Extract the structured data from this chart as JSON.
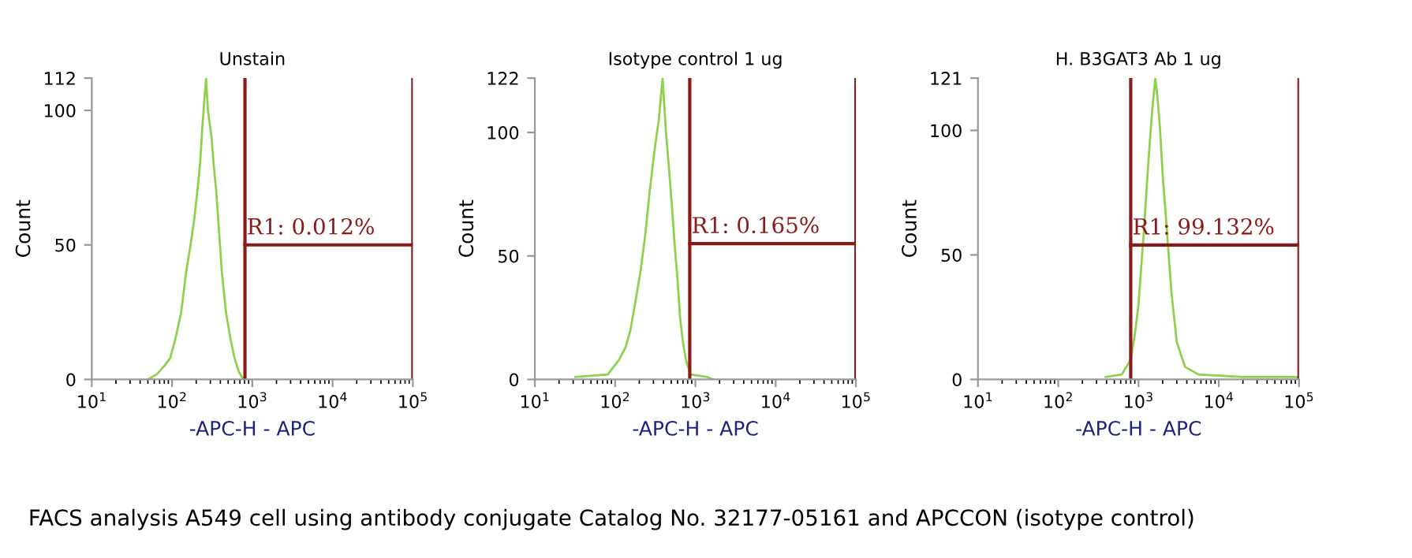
{
  "chart_data": [
    {
      "type": "line",
      "title": "Unstain",
      "xlabel": "-APC-H - APC",
      "ylabel": "Count",
      "log": "x",
      "grid": false,
      "xlim": [
        10,
        100000
      ],
      "xticks": [
        {
          "value": 10,
          "label": "10$^{1}$"
        },
        {
          "value": 100,
          "label": "10$^{2}$"
        },
        {
          "value": 1000,
          "label": "10$^{3}$"
        },
        {
          "value": 10000,
          "label": "10$^{4}$"
        },
        {
          "value": 100000,
          "label": "10$^{5}$"
        }
      ],
      "ylim": [
        0,
        112
      ],
      "yticks": [
        0,
        50,
        100,
        112
      ],
      "series": [
        {
          "color": "#8fd14f",
          "x": [
            50,
            65,
            80,
            95,
            110,
            130,
            150,
            170,
            190,
            210,
            223,
            240,
            265,
            280,
            310,
            330,
            355,
            385,
            417,
            470,
            535,
            600,
            676,
            740,
            790
          ],
          "values": [
            0,
            2,
            5,
            8,
            15,
            25,
            40,
            50,
            60,
            72,
            80,
            95,
            112,
            100,
            90,
            80,
            70,
            55,
            40,
            25,
            15,
            8,
            3,
            1,
            0
          ]
        }
      ],
      "ref_lines": [
        {
          "axis": "x",
          "value": 810,
          "color": "#8b1a1a"
        },
        {
          "axis": "x",
          "value": 100000,
          "color": "#8b1a1a"
        },
        {
          "axis": "y",
          "value": 50,
          "color": "#8b1a1a"
        }
      ],
      "annotations": [
        {
          "text": "R1: 0.012%",
          "x": 810,
          "y": 50
        },
        "FACS analysis A549 cell using antibody conjugate Catalog No. 32177-05161 and APCCON (isotype control)"
      ]
    },
    {
      "type": "line",
      "title": "Isotype control 1 ug",
      "xlabel": "-APC-H - APC",
      "ylabel": "Count",
      "log": "x",
      "grid": false,
      "xlim": [
        10,
        100000
      ],
      "xticks": [
        {
          "value": 10,
          "label": "10$^{1}$"
        },
        {
          "value": 100,
          "label": "10$^{2}$"
        },
        {
          "value": 1000,
          "label": "10$^{3}$"
        },
        {
          "value": 10000,
          "label": "10$^{4}$"
        },
        {
          "value": 100000,
          "label": "10$^{5}$"
        }
      ],
      "ylim": [
        0,
        122
      ],
      "yticks": [
        0,
        50,
        100,
        122
      ],
      "series": [
        {
          "color": "#8fd14f",
          "x": [
            32,
            81,
            112,
            135,
            155,
            180,
            210,
            240,
            267,
            290,
            316,
            350,
            390,
            430,
            470,
            510,
            550,
            600,
            645,
            700,
            760,
            870,
            1400,
            1660
          ],
          "values": [
            1,
            2,
            8,
            13,
            20,
            32,
            45,
            60,
            75,
            85,
            95,
            105,
            122,
            100,
            85,
            70,
            55,
            40,
            25,
            15,
            8,
            2,
            1,
            0
          ]
        }
      ],
      "ref_lines": [
        {
          "axis": "x",
          "value": 850,
          "color": "#8b1a1a"
        },
        {
          "axis": "x",
          "value": 100000,
          "color": "#8b1a1a"
        },
        {
          "axis": "y",
          "value": 55,
          "color": "#8b1a1a"
        }
      ],
      "annotations": [
        {
          "text": "R1: 0.165%",
          "x": 850,
          "y": 55
        }
      ]
    },
    {
      "type": "line",
      "title": "H. B3GAT3 Ab 1 ug",
      "xlabel": "-APC-H - APC",
      "ylabel": "Count",
      "log": "x",
      "grid": false,
      "xlim": [
        10,
        100000
      ],
      "xticks": [
        {
          "value": 10,
          "label": "10$^{1}$"
        },
        {
          "value": 100,
          "label": "10$^{2}$"
        },
        {
          "value": 1000,
          "label": "10$^{3}$"
        },
        {
          "value": 10000,
          "label": "10$^{4}$"
        },
        {
          "value": 100000,
          "label": "10$^{5}$"
        }
      ],
      "ylim": [
        0,
        121
      ],
      "yticks": [
        0,
        50,
        100,
        121
      ],
      "series": [
        {
          "color": "#8fd14f",
          "x": [
            390,
            620,
            800,
            900,
            1000,
            1080,
            1170,
            1270,
            1380,
            1500,
            1620,
            1740,
            1860,
            2000,
            2200,
            2400,
            2570,
            3000,
            3800,
            5600,
            20000,
            100000
          ],
          "values": [
            1,
            2,
            8,
            18,
            30,
            45,
            60,
            78,
            95,
            110,
            121,
            112,
            100,
            82,
            65,
            48,
            35,
            15,
            5,
            2,
            1,
            1
          ]
        }
      ],
      "ref_lines": [
        {
          "axis": "x",
          "value": 800,
          "color": "#8b1a1a"
        },
        {
          "axis": "x",
          "value": 100000,
          "color": "#8b1a1a"
        },
        {
          "axis": "y",
          "value": 54,
          "color": "#8b1a1a"
        }
      ],
      "annotations": [
        {
          "text": "R1: 99.132%",
          "x": 800,
          "y": 54
        }
      ]
    }
  ]
}
